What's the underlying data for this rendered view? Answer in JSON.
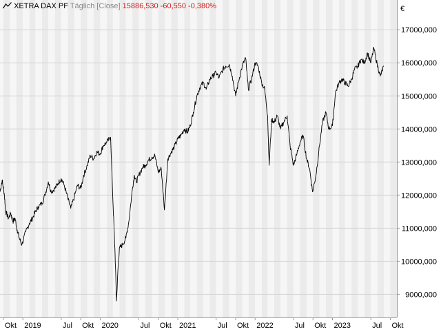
{
  "header": {
    "symbol": "XETRA DAX PF",
    "mode": "Täglich [Close]",
    "last": "15886,530",
    "change": "-60,550",
    "change_pct": "-0,380%",
    "negative_color": "#d21a1a"
  },
  "colors": {
    "line": "#000000",
    "band_light": "#f6f6f6",
    "band_dark": "#ebebeb",
    "grid": "#d4d4d4",
    "axis": "#9a9a9a"
  },
  "icons": {
    "chart_type": "line-chart-icon"
  },
  "chart_data": {
    "type": "line",
    "title": "XETRA DAX PF",
    "currency_label": "€",
    "ylim": [
      8300,
      17900
    ],
    "y_ticks": [
      {
        "value": 9000,
        "label": "9000,000"
      },
      {
        "value": 10000,
        "label": "10000,000"
      },
      {
        "value": 11000,
        "label": "11000,000"
      },
      {
        "value": 12000,
        "label": "12000,000"
      },
      {
        "value": 13000,
        "label": "13000,000"
      },
      {
        "value": 14000,
        "label": "14000,000"
      },
      {
        "value": 15000,
        "label": "15000,000"
      },
      {
        "value": 16000,
        "label": "16000,000"
      },
      {
        "value": 17000,
        "label": "17000,000"
      }
    ],
    "x_range": [
      "2018-09-15",
      "2023-11-01"
    ],
    "x_ticks": [
      {
        "date": "2018-10-01",
        "label": "Okt"
      },
      {
        "date": "2019-01-01",
        "label": "2019"
      },
      {
        "date": "2019-07-01",
        "label": "Jul"
      },
      {
        "date": "2019-10-01",
        "label": "Okt"
      },
      {
        "date": "2020-01-01",
        "label": "2020"
      },
      {
        "date": "2020-07-01",
        "label": "Jul"
      },
      {
        "date": "2020-10-01",
        "label": "Okt"
      },
      {
        "date": "2021-01-01",
        "label": "2021"
      },
      {
        "date": "2021-07-01",
        "label": "Jul"
      },
      {
        "date": "2021-10-01",
        "label": "Okt"
      },
      {
        "date": "2022-01-01",
        "label": "2022"
      },
      {
        "date": "2022-07-01",
        "label": "Jul"
      },
      {
        "date": "2022-10-01",
        "label": "Okt"
      },
      {
        "date": "2023-01-01",
        "label": "2023"
      },
      {
        "date": "2023-07-01",
        "label": "Jul"
      },
      {
        "date": "2023-10-01",
        "label": "Okt"
      }
    ],
    "grid": true,
    "series": [
      {
        "x": [
          "2018-09-15",
          "2018-09-25",
          "2018-10-05",
          "2018-10-12",
          "2018-10-25",
          "2018-11-05",
          "2018-11-15",
          "2018-11-25",
          "2018-12-05",
          "2018-12-15",
          "2018-12-27",
          "2019-01-15",
          "2019-02-01",
          "2019-02-15",
          "2019-03-01",
          "2019-03-15",
          "2019-04-01",
          "2019-04-15",
          "2019-05-01",
          "2019-05-15",
          "2019-06-01",
          "2019-06-15",
          "2019-07-01",
          "2019-07-15",
          "2019-08-01",
          "2019-08-15",
          "2019-09-01",
          "2019-09-15",
          "2019-10-01",
          "2019-10-15",
          "2019-11-01",
          "2019-11-15",
          "2019-12-01",
          "2019-12-15",
          "2020-01-01",
          "2020-01-15",
          "2020-02-01",
          "2020-02-19",
          "2020-03-01",
          "2020-03-10",
          "2020-03-18",
          "2020-03-25",
          "2020-04-01",
          "2020-04-15",
          "2020-05-01",
          "2020-05-15",
          "2020-06-01",
          "2020-06-10",
          "2020-06-20",
          "2020-07-01",
          "2020-07-20",
          "2020-08-01",
          "2020-08-15",
          "2020-09-01",
          "2020-09-15",
          "2020-10-01",
          "2020-10-15",
          "2020-10-30",
          "2020-11-15",
          "2020-12-01",
          "2020-12-15",
          "2021-01-01",
          "2021-01-15",
          "2021-02-01",
          "2021-02-15",
          "2021-03-01",
          "2021-03-15",
          "2021-04-01",
          "2021-04-15",
          "2021-05-01",
          "2021-05-15",
          "2021-06-01",
          "2021-06-15",
          "2021-07-01",
          "2021-07-15",
          "2021-08-01",
          "2021-08-15",
          "2021-09-01",
          "2021-09-15",
          "2021-10-01",
          "2021-10-15",
          "2021-11-01",
          "2021-11-17",
          "2021-11-30",
          "2021-12-15",
          "2022-01-01",
          "2022-01-15",
          "2022-02-01",
          "2022-02-15",
          "2022-03-01",
          "2022-03-08",
          "2022-03-20",
          "2022-04-01",
          "2022-04-15",
          "2022-05-01",
          "2022-05-15",
          "2022-06-01",
          "2022-06-15",
          "2022-07-01",
          "2022-07-15",
          "2022-08-01",
          "2022-08-15",
          "2022-09-01",
          "2022-09-15",
          "2022-09-29",
          "2022-10-15",
          "2022-11-01",
          "2022-11-15",
          "2022-12-01",
          "2022-12-15",
          "2023-01-01",
          "2023-01-15",
          "2023-02-01",
          "2023-02-15",
          "2023-03-01",
          "2023-03-15",
          "2023-04-01",
          "2023-04-15",
          "2023-05-01",
          "2023-05-15",
          "2023-06-01",
          "2023-06-15",
          "2023-07-01",
          "2023-07-15",
          "2023-07-31",
          "2023-08-15",
          "2023-08-31"
        ],
        "values": [
          12100,
          12450,
          12050,
          11500,
          11300,
          11450,
          11200,
          11300,
          10950,
          10700,
          10500,
          10900,
          11150,
          11300,
          11500,
          11650,
          11750,
          12000,
          12400,
          12100,
          12200,
          12350,
          12500,
          12300,
          11900,
          11600,
          11950,
          12300,
          12200,
          12600,
          12900,
          13200,
          13100,
          13300,
          13250,
          13500,
          13600,
          13750,
          11800,
          10400,
          8800,
          9800,
          10400,
          10500,
          10700,
          11200,
          12200,
          12600,
          12400,
          12600,
          12850,
          12900,
          13050,
          13150,
          13200,
          12700,
          12800,
          11550,
          13100,
          13300,
          13450,
          13700,
          13800,
          14000,
          13900,
          14100,
          14500,
          15000,
          15250,
          15400,
          15200,
          15500,
          15600,
          15700,
          15550,
          15800,
          15900,
          15950,
          15600,
          15000,
          15450,
          15900,
          16150,
          15200,
          15500,
          16000,
          15900,
          15400,
          15200,
          14400,
          12900,
          14300,
          14200,
          14400,
          14000,
          14200,
          14400,
          13500,
          12900,
          13200,
          13600,
          13800,
          13100,
          12800,
          12100,
          12600,
          13500,
          14200,
          14500,
          14000,
          14100,
          15100,
          15400,
          15500,
          15400,
          15300,
          15500,
          15800,
          15900,
          16100,
          16000,
          16300,
          16000,
          16450,
          15950,
          15600,
          15900
        ]
      }
    ]
  }
}
